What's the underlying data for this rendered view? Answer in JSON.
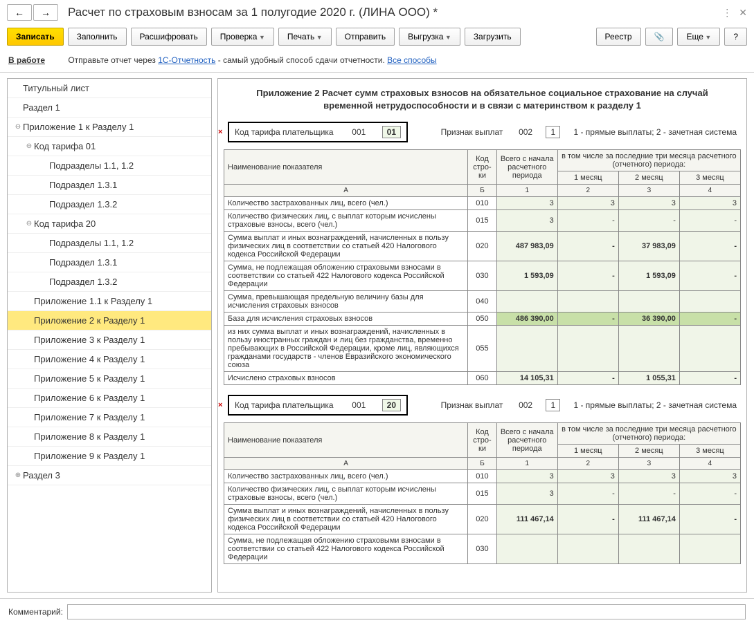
{
  "window": {
    "title": "Расчет по страховым взносам за 1 полугодие 2020 г. (ЛИНА ООО) *"
  },
  "toolbar": {
    "back": "←",
    "fwd": "→",
    "save": "Записать",
    "fill": "Заполнить",
    "decode": "Расшифровать",
    "check": "Проверка",
    "print": "Печать",
    "send": "Отправить",
    "export": "Выгрузка",
    "load": "Загрузить",
    "registry": "Реестр",
    "more": "Еще",
    "help": "?"
  },
  "status": {
    "in_work": "В работе",
    "text1": "Отправьте отчет через ",
    "link1": "1С-Отчетность",
    "text2": " - самый удобный способ сдачи отчетности. ",
    "link2": "Все способы"
  },
  "tree": [
    {
      "label": "Титульный лист",
      "lvl": 0,
      "tog": ""
    },
    {
      "label": "Раздел 1",
      "lvl": 0,
      "tog": ""
    },
    {
      "label": "Приложение 1 к Разделу 1",
      "lvl": 0,
      "tog": "⊖"
    },
    {
      "label": "Код тарифа 01",
      "lvl": 1,
      "tog": "⊖"
    },
    {
      "label": "Подразделы 1.1, 1.2",
      "lvl": 2,
      "tog": ""
    },
    {
      "label": "Подраздел 1.3.1",
      "lvl": 2,
      "tog": ""
    },
    {
      "label": "Подраздел 1.3.2",
      "lvl": 2,
      "tog": ""
    },
    {
      "label": "Код тарифа 20",
      "lvl": 1,
      "tog": "⊖"
    },
    {
      "label": "Подразделы 1.1, 1.2",
      "lvl": 2,
      "tog": ""
    },
    {
      "label": "Подраздел 1.3.1",
      "lvl": 2,
      "tog": ""
    },
    {
      "label": "Подраздел 1.3.2",
      "lvl": 2,
      "tog": ""
    },
    {
      "label": "Приложение 1.1 к Разделу 1",
      "lvl": 1,
      "tog": ""
    },
    {
      "label": "Приложение 2 к Разделу 1",
      "lvl": 1,
      "tog": "",
      "sel": true
    },
    {
      "label": "Приложение 3 к Разделу 1",
      "lvl": 1,
      "tog": ""
    },
    {
      "label": "Приложение 4 к Разделу 1",
      "lvl": 1,
      "tog": ""
    },
    {
      "label": "Приложение 5 к Разделу 1",
      "lvl": 1,
      "tog": ""
    },
    {
      "label": "Приложение 6 к Разделу 1",
      "lvl": 1,
      "tog": ""
    },
    {
      "label": "Приложение 7 к Разделу 1",
      "lvl": 1,
      "tog": ""
    },
    {
      "label": "Приложение 8 к Разделу 1",
      "lvl": 1,
      "tog": ""
    },
    {
      "label": "Приложение 9 к Разделу 1",
      "lvl": 1,
      "tog": ""
    },
    {
      "label": "Раздел 3",
      "lvl": 0,
      "tog": "⊕"
    }
  ],
  "doc": {
    "title": "Приложение 2 Расчет сумм страховых взносов на обязательное социальное страхование на случай временной нетрудоспособности и в связи с материнством к разделу 1",
    "tariff_label": "Код тарифа плательщика",
    "tariff_num": "001",
    "payment_label": "Признак выплат",
    "payment_num": "002",
    "payment_val": "1",
    "payment_hint": "1 - прямые выплаты; 2 - зачетная система",
    "headers": {
      "name": "Наименование показателя",
      "code": "Код стро-ки",
      "total": "Всего с начала расчетного периода",
      "months_header": "в том числе за последние три месяца расчетного (отчетного) периода:",
      "m1": "1 месяц",
      "m2": "2 месяц",
      "m3": "3 месяц",
      "col_a": "А",
      "col_b": "Б",
      "col_1": "1",
      "col_2": "2",
      "col_3": "3",
      "col_4": "4"
    },
    "rows": [
      {
        "name": "Количество застрахованных лиц, всего (чел.)",
        "code": "010",
        "v1": "3",
        "v2": "3",
        "v3": "3",
        "v4": "3",
        "hl": false
      },
      {
        "name": "Количество физических лиц, с выплат которым исчислены страховые взносы, всего (чел.)",
        "code": "015",
        "v1": "3",
        "v2": "-",
        "v3": "-",
        "v4": "-",
        "hl": false
      },
      {
        "name": "Сумма выплат и иных вознаграждений, начисленных в пользу физических лиц в соответствии со статьей 420 Налогового кодекса Российской Федерации",
        "code": "020",
        "v1": "487 983,09",
        "v2": "-",
        "v3": "37 983,09",
        "v4": "-",
        "hl": false,
        "bold": true
      },
      {
        "name": "Сумма, не подлежащая обложению страховыми взносами в соответствии со статьей 422 Налогового кодекса Российской Федерации",
        "code": "030",
        "v1": "1 593,09",
        "v2": "-",
        "v3": "1 593,09",
        "v4": "-",
        "hl": false,
        "bold": true
      },
      {
        "name": "Сумма, превышающая предельную величину базы для исчисления страховых взносов",
        "code": "040",
        "v1": "",
        "v2": "",
        "v3": "",
        "v4": "",
        "hl": false
      },
      {
        "name": "База для исчисления страховых взносов",
        "code": "050",
        "v1": "486 390,00",
        "v2": "-",
        "v3": "36 390,00",
        "v4": "-",
        "hl": true,
        "bold": true
      },
      {
        "name": "из них сумма выплат и иных вознаграждений, начисленных в пользу иностранных граждан и лиц без гражданства, временно пребывающих в Российской Федерации, кроме лиц, являющихся гражданами государств - членов Евразийского экономического союза",
        "code": "055",
        "v1": "",
        "v2": "",
        "v3": "",
        "v4": "",
        "hl": false
      },
      {
        "name": "Исчислено страховых взносов",
        "code": "060",
        "v1": "14 105,31",
        "v2": "-",
        "v3": "1 055,31",
        "v4": "-",
        "hl": false,
        "bold": true
      }
    ],
    "tariff2_code": "20",
    "rows2": [
      {
        "name": "Количество застрахованных лиц, всего (чел.)",
        "code": "010",
        "v1": "3",
        "v2": "3",
        "v3": "3",
        "v4": "3"
      },
      {
        "name": "Количество физических лиц, с выплат которым исчислены страховые взносы, всего (чел.)",
        "code": "015",
        "v1": "3",
        "v2": "-",
        "v3": "-",
        "v4": "-"
      },
      {
        "name": "Сумма выплат и иных вознаграждений, начисленных в пользу физических лиц в соответствии со статьей 420 Налогового кодекса Российской Федерации",
        "code": "020",
        "v1": "111 467,14",
        "v2": "-",
        "v3": "111 467,14",
        "v4": "-",
        "bold": true
      },
      {
        "name": "Сумма, не подлежащая обложению страховыми взносами в соответствии со статьей 422 Налогового кодекса Российской Федерации",
        "code": "030",
        "v1": "",
        "v2": "",
        "v3": "",
        "v4": ""
      }
    ]
  },
  "footer": {
    "comment_label": "Комментарий:",
    "comment_value": ""
  }
}
